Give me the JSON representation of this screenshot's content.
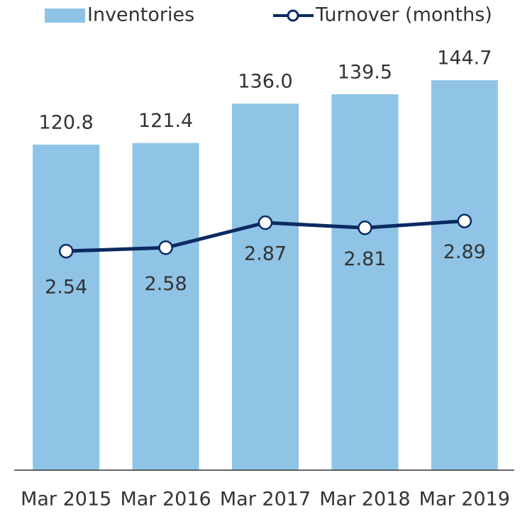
{
  "chart_data": {
    "type": "bar_line",
    "categories": [
      "Mar 2015",
      "Mar 2016",
      "Mar 2017",
      "Mar 2018",
      "Mar 2019"
    ],
    "series": [
      {
        "name": "Inventories",
        "type": "bar",
        "color": "#8fc4e6",
        "values": [
          120.8,
          121.4,
          136,
          139.5,
          144.7
        ],
        "value_labels": [
          "120.8",
          "121.4",
          "136.0",
          "139.5",
          "144.7"
        ]
      },
      {
        "name": "Turnover (months)",
        "type": "line",
        "axis": "y2",
        "color": "#0b2a63",
        "values": [
          2.54,
          2.58,
          2.87,
          2.81,
          2.89
        ],
        "value_labels": [
          "2.54",
          "2.58",
          "2.87",
          "2.81",
          "2.89"
        ]
      }
    ],
    "ylim": [
      0,
      160
    ],
    "y2lim": [
      0,
      5
    ],
    "legend": "top"
  }
}
